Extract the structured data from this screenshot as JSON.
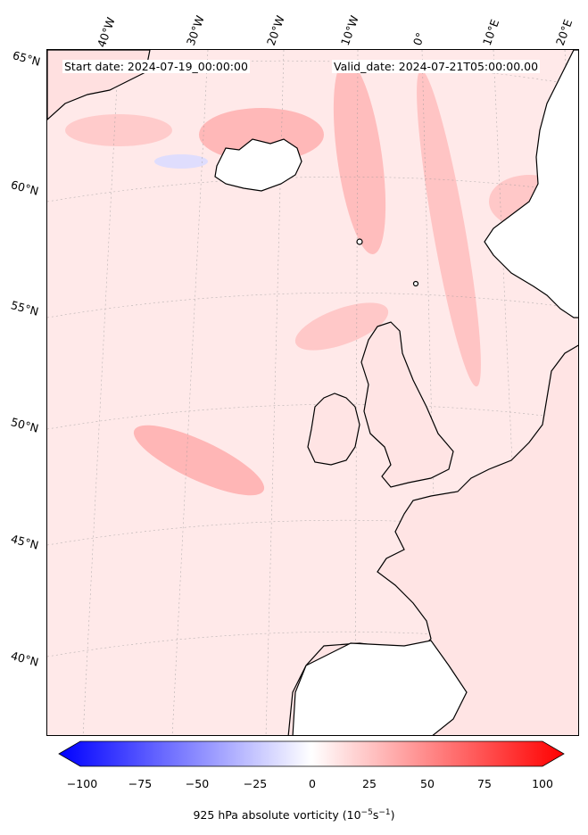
{
  "header": {
    "start_date": "Start date: 2024-07-19_00:00:00",
    "valid_date": "Valid_date: 2024-07-21T05:00:00.00"
  },
  "longitude_labels": [
    "40°W",
    "30°W",
    "20°W",
    "10°W",
    "0°",
    "10°E",
    "20°E"
  ],
  "latitude_labels": [
    "65°N",
    "60°N",
    "55°N",
    "50°N",
    "45°N",
    "40°N"
  ],
  "colorbar": {
    "ticks": [
      "−100",
      "−75",
      "−50",
      "−25",
      "0",
      "25",
      "50",
      "75",
      "100"
    ],
    "min": -100,
    "max": 100,
    "low_color": "#0000ff",
    "mid_color": "#ffffff",
    "high_color": "#ff0000",
    "label": "925 hPa absolute vorticity (10",
    "label_exp1": "−5",
    "label_mid": "s",
    "label_exp2": "−1",
    "label_end": ")"
  },
  "colors": {
    "background": "#ffe6e6",
    "coastline": "#000000",
    "gridline": "#999999"
  }
}
